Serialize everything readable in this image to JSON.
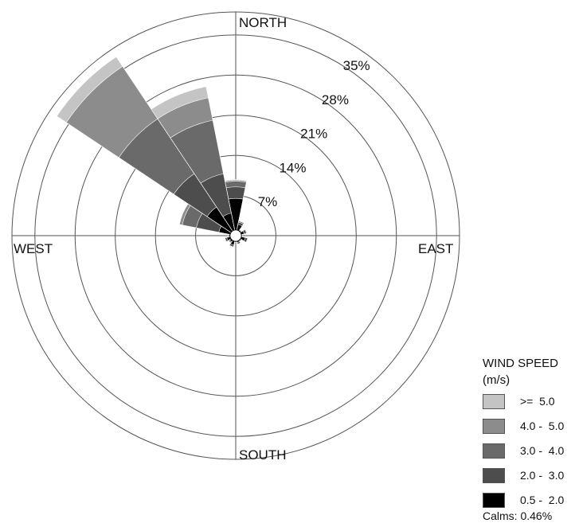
{
  "chart_data": {
    "type": "wind-rose",
    "direction_labels": {
      "north": "NORTH",
      "east": "EAST",
      "south": "SOUTH",
      "west": "WEST"
    },
    "radial_ticks": [
      "7%",
      "14%",
      "21%",
      "28%",
      "35%"
    ],
    "radial_values": [
      7,
      14,
      21,
      28,
      35
    ],
    "rmax": 39,
    "bins": [
      {
        "label": "0.5 -  2.0",
        "color": "#000000"
      },
      {
        "label": "2.0 -  3.0",
        "color": "#4d4d4d"
      },
      {
        "label": "3.0 -  4.0",
        "color": "#6a6a6a"
      },
      {
        "label": "4.0 -  5.0",
        "color": "#8c8c8c"
      },
      {
        "label": ">=  5.0",
        "color": "#c4c4c4"
      }
    ],
    "directions": [
      {
        "dir": 0,
        "cumulative": [
          6.5,
          8.5,
          9.5,
          9.7,
          9.8
        ]
      },
      {
        "dir": 22.5,
        "cumulative": [
          2.0,
          2.4,
          2.6,
          2.6,
          2.6
        ]
      },
      {
        "dir": 45,
        "cumulative": [
          0.9,
          1.2,
          1.2,
          1.2,
          1.2
        ]
      },
      {
        "dir": 67.5,
        "cumulative": [
          1.5,
          1.9,
          2.0,
          2.0,
          2.0
        ]
      },
      {
        "dir": 90,
        "cumulative": [
          0.9,
          1.1,
          1.1,
          1.1,
          1.1
        ]
      },
      {
        "dir": 112.5,
        "cumulative": [
          1.7,
          2.1,
          2.2,
          2.2,
          2.2
        ]
      },
      {
        "dir": 135,
        "cumulative": [
          1.0,
          1.2,
          1.2,
          1.2,
          1.2
        ]
      },
      {
        "dir": 157.5,
        "cumulative": [
          1.2,
          1.5,
          1.5,
          1.5,
          1.5
        ]
      },
      {
        "dir": 180,
        "cumulative": [
          0.9,
          1.1,
          1.1,
          1.1,
          1.1
        ]
      },
      {
        "dir": 202.5,
        "cumulative": [
          1.7,
          2.0,
          2.0,
          2.0,
          2.0
        ]
      },
      {
        "dir": 225,
        "cumulative": [
          1.3,
          1.5,
          1.5,
          1.5,
          1.5
        ]
      },
      {
        "dir": 247.5,
        "cumulative": [
          1.6,
          1.9,
          2.0,
          2.0,
          2.0
        ]
      },
      {
        "dir": 270,
        "cumulative": [
          1.1,
          1.3,
          1.3,
          1.3,
          1.3
        ]
      },
      {
        "dir": 292.5,
        "cumulative": [
          3.0,
          7.0,
          9.5,
          10.0,
          10.0
        ]
      },
      {
        "dir": 315,
        "cumulative": [
          6.0,
          13.0,
          24.5,
          35.5,
          37.5
        ]
      },
      {
        "dir": 337.5,
        "cumulative": [
          4.0,
          11.0,
          20.5,
          24.5,
          26.5
        ]
      }
    ]
  },
  "legend": {
    "title_line1": "WIND SPEED",
    "title_line2": "(m/s)",
    "items": [
      {
        "label": ">=  5.0",
        "color": "#c4c4c4"
      },
      {
        "label": "4.0 -  5.0",
        "color": "#8c8c8c"
      },
      {
        "label": "3.0 -  4.0",
        "color": "#6a6a6a"
      },
      {
        "label": "2.0 -  3.0",
        "color": "#4d4d4d"
      },
      {
        "label": "0.5 -  2.0",
        "color": "#000000"
      }
    ]
  },
  "calms": "Calms: 0.46%"
}
